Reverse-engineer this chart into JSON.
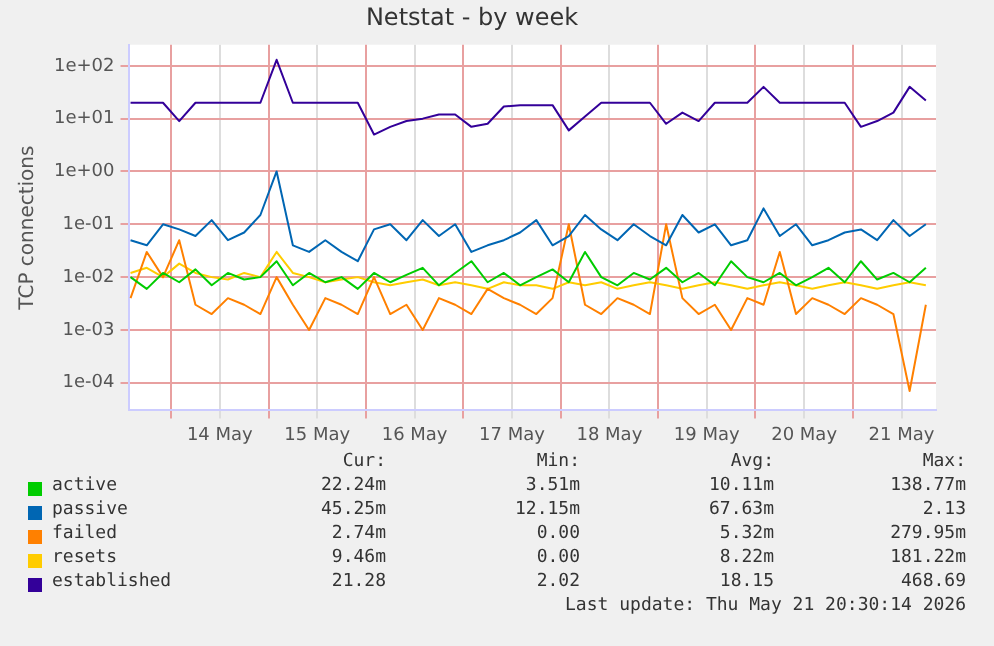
{
  "chart_data": {
    "type": "line",
    "title": "Netstat - by week",
    "ylabel": "TCP connections",
    "log": true,
    "grid": true,
    "legend": "bottom",
    "marker": "none",
    "line_style": "solid",
    "xlim": [
      "2026-05-13T13:30",
      "2026-05-21T20:30"
    ],
    "xticks": [
      {
        "value": "2026-05-14T00:00",
        "label": null
      },
      {
        "value": "2026-05-14T12:00",
        "label": "14 May"
      },
      {
        "value": "2026-05-15T00:00",
        "label": null
      },
      {
        "value": "2026-05-15T12:00",
        "label": "15 May"
      },
      {
        "value": "2026-05-16T00:00",
        "label": null
      },
      {
        "value": "2026-05-16T12:00",
        "label": "16 May"
      },
      {
        "value": "2026-05-17T00:00",
        "label": null
      },
      {
        "value": "2026-05-17T12:00",
        "label": "17 May"
      },
      {
        "value": "2026-05-18T00:00",
        "label": null
      },
      {
        "value": "2026-05-18T12:00",
        "label": "18 May"
      },
      {
        "value": "2026-05-19T00:00",
        "label": null
      },
      {
        "value": "2026-05-19T12:00",
        "label": "19 May"
      },
      {
        "value": "2026-05-20T00:00",
        "label": null
      },
      {
        "value": "2026-05-20T12:00",
        "label": "20 May"
      },
      {
        "value": "2026-05-21T00:00",
        "label": null
      },
      {
        "value": "2026-05-21T12:00",
        "label": "21 May"
      }
    ],
    "ylim": [
      3e-05,
      250
    ],
    "yticks": [
      {
        "value": 0.0001,
        "label": "1e-04"
      },
      {
        "value": 0.001,
        "label": "1e-03"
      },
      {
        "value": 0.01,
        "label": "1e-02"
      },
      {
        "value": 0.1,
        "label": "1e-01"
      },
      {
        "value": 1,
        "label": "1e+00"
      },
      {
        "value": 10,
        "label": "1e+01"
      },
      {
        "value": 100,
        "label": "1e+02"
      }
    ],
    "x": [
      "2026-05-13T14:00",
      "2026-05-13T18:00",
      "2026-05-13T22:00",
      "2026-05-14T02:00",
      "2026-05-14T06:00",
      "2026-05-14T10:00",
      "2026-05-14T14:00",
      "2026-05-14T18:00",
      "2026-05-14T22:00",
      "2026-05-15T02:00",
      "2026-05-15T06:00",
      "2026-05-15T10:00",
      "2026-05-15T14:00",
      "2026-05-15T18:00",
      "2026-05-15T22:00",
      "2026-05-16T02:00",
      "2026-05-16T06:00",
      "2026-05-16T10:00",
      "2026-05-16T14:00",
      "2026-05-16T18:00",
      "2026-05-16T22:00",
      "2026-05-17T02:00",
      "2026-05-17T06:00",
      "2026-05-17T10:00",
      "2026-05-17T14:00",
      "2026-05-17T18:00",
      "2026-05-17T22:00",
      "2026-05-18T02:00",
      "2026-05-18T06:00",
      "2026-05-18T10:00",
      "2026-05-18T14:00",
      "2026-05-18T18:00",
      "2026-05-18T22:00",
      "2026-05-19T02:00",
      "2026-05-19T06:00",
      "2026-05-19T10:00",
      "2026-05-19T14:00",
      "2026-05-19T18:00",
      "2026-05-19T22:00",
      "2026-05-20T02:00",
      "2026-05-20T06:00",
      "2026-05-20T10:00",
      "2026-05-20T14:00",
      "2026-05-20T18:00",
      "2026-05-20T22:00",
      "2026-05-21T02:00",
      "2026-05-21T06:00",
      "2026-05-21T10:00",
      "2026-05-21T14:00",
      "2026-05-21T18:00"
    ],
    "series": [
      {
        "name": "active",
        "color": "#00cc00",
        "values": [
          0.01,
          0.006,
          0.012,
          0.008,
          0.014,
          0.007,
          0.012,
          0.009,
          0.01,
          0.02,
          0.007,
          0.012,
          0.008,
          0.01,
          0.006,
          0.012,
          0.008,
          0.011,
          0.015,
          0.007,
          0.012,
          0.02,
          0.008,
          0.012,
          0.007,
          0.01,
          0.014,
          0.008,
          0.03,
          0.01,
          0.007,
          0.012,
          0.009,
          0.015,
          0.008,
          0.012,
          0.007,
          0.02,
          0.01,
          0.008,
          0.012,
          0.007,
          0.01,
          0.015,
          0.008,
          0.02,
          0.009,
          0.012,
          0.008,
          0.015
        ]
      },
      {
        "name": "passive",
        "color": "#0066b3",
        "values": [
          0.05,
          0.04,
          0.1,
          0.08,
          0.06,
          0.12,
          0.05,
          0.07,
          0.15,
          1.0,
          0.04,
          0.03,
          0.05,
          0.03,
          0.02,
          0.08,
          0.1,
          0.05,
          0.12,
          0.06,
          0.1,
          0.03,
          0.04,
          0.05,
          0.07,
          0.12,
          0.04,
          0.06,
          0.15,
          0.08,
          0.05,
          0.1,
          0.06,
          0.04,
          0.15,
          0.07,
          0.1,
          0.04,
          0.05,
          0.2,
          0.06,
          0.1,
          0.04,
          0.05,
          0.07,
          0.08,
          0.05,
          0.12,
          0.06,
          0.1
        ]
      },
      {
        "name": "failed",
        "color": "#ff8000",
        "values": [
          0.004,
          0.03,
          0.01,
          0.05,
          0.003,
          0.002,
          0.004,
          0.003,
          0.002,
          0.01,
          0.003,
          0.001,
          0.004,
          0.003,
          0.002,
          0.01,
          0.002,
          0.003,
          0.001,
          0.004,
          0.003,
          0.002,
          0.006,
          0.004,
          0.003,
          0.002,
          0.004,
          0.1,
          0.003,
          0.002,
          0.004,
          0.003,
          0.002,
          0.1,
          0.004,
          0.002,
          0.003,
          0.001,
          0.004,
          0.003,
          0.03,
          0.002,
          0.004,
          0.003,
          0.002,
          0.004,
          0.003,
          0.002,
          7e-05,
          0.003
        ]
      },
      {
        "name": "resets",
        "color": "#ffcc00",
        "values": [
          0.012,
          0.015,
          0.01,
          0.018,
          0.012,
          0.01,
          0.009,
          0.012,
          0.01,
          0.03,
          0.012,
          0.01,
          0.008,
          0.009,
          0.01,
          0.008,
          0.007,
          0.008,
          0.009,
          0.007,
          0.008,
          0.007,
          0.006,
          0.008,
          0.007,
          0.007,
          0.006,
          0.008,
          0.007,
          0.008,
          0.006,
          0.007,
          0.008,
          0.007,
          0.006,
          0.007,
          0.008,
          0.007,
          0.006,
          0.007,
          0.008,
          0.007,
          0.006,
          0.007,
          0.008,
          0.007,
          0.006,
          0.007,
          0.008,
          0.007
        ]
      },
      {
        "name": "established",
        "color": "#330099",
        "values": [
          20,
          20,
          20,
          9,
          20,
          20,
          20,
          20,
          20,
          130,
          20,
          20,
          20,
          20,
          20,
          5,
          7,
          9,
          10,
          12,
          12,
          7,
          8,
          17,
          18,
          18,
          18,
          6,
          11,
          20,
          20,
          20,
          20,
          8,
          13,
          9,
          20,
          20,
          20,
          40,
          20,
          20,
          20,
          20,
          20,
          7,
          9,
          13,
          40,
          22
        ]
      }
    ],
    "annotations": [
      "Cur:",
      "Min:",
      "Avg:",
      "Max:",
      "22.24m",
      "3.51m",
      "10.11m",
      "138.77m",
      "45.25m",
      "12.15m",
      "67.63m",
      "2.13",
      "2.74m",
      "0.00",
      "5.32m",
      "279.95m",
      "9.46m",
      "0.00",
      "8.22m",
      "181.22m",
      "21.28",
      "2.02",
      "18.15",
      "468.69",
      "Last update: Thu May 21 20:30:14 2026"
    ]
  }
}
